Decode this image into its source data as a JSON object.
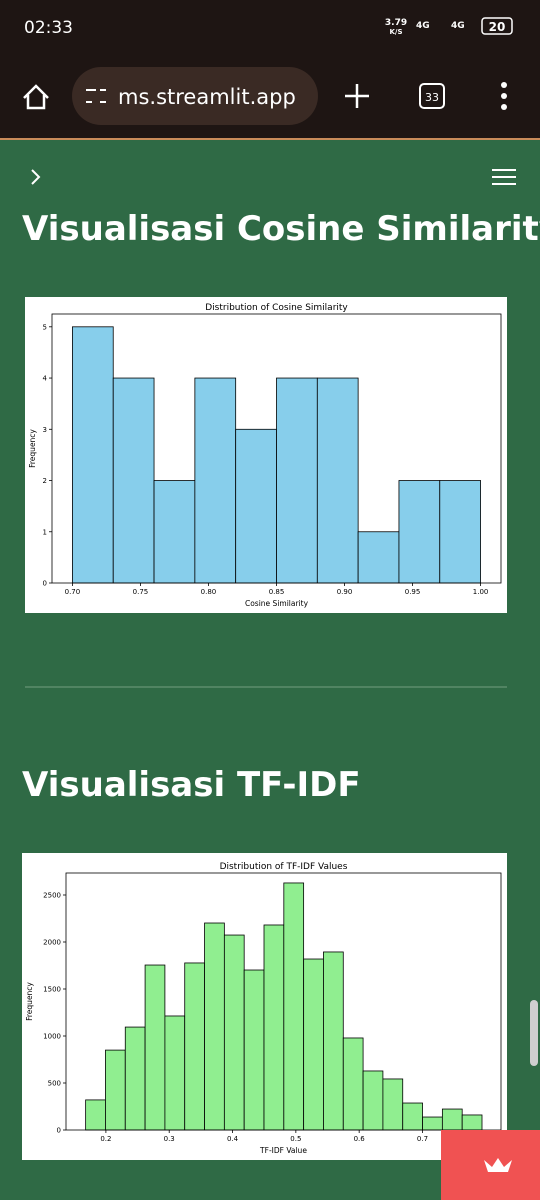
{
  "status_bar": {
    "time": "02:33",
    "speed": "3.79",
    "speed_unit": "K/S",
    "network1": "4G",
    "network2": "4G",
    "battery": "20"
  },
  "browser": {
    "url": "ms.streamlit.app",
    "tabs": "33"
  },
  "headings": [
    "Visualisasi Cosine Similarity",
    "Visualisasi TF-IDF"
  ],
  "chart_data": [
    {
      "type": "histogram",
      "title": "Distribution of Cosine Similarity",
      "x_label": "Cosine Similarity",
      "y_label": "Frequency",
      "color": "#87ceeb",
      "bins": [
        0.7,
        0.73,
        0.76,
        0.79,
        0.82,
        0.85,
        0.88,
        0.91,
        0.94,
        0.97,
        1.0
      ],
      "values": [
        5,
        4,
        2,
        4,
        3,
        4,
        4,
        1,
        2,
        2
      ],
      "xlim": [
        0.685,
        1.015
      ],
      "ylim": [
        0,
        5.25
      ],
      "xticks": [
        {
          "value": 0.7,
          "label": "0.70"
        },
        {
          "value": 0.75,
          "label": "0.75"
        },
        {
          "value": 0.8,
          "label": "0.80"
        },
        {
          "value": 0.85,
          "label": "0.85"
        },
        {
          "value": 0.9,
          "label": "0.90"
        },
        {
          "value": 0.95,
          "label": "0.95"
        },
        {
          "value": 1,
          "label": "1.00"
        }
      ],
      "yticks": [
        0,
        1,
        2,
        3,
        4,
        5
      ]
    },
    {
      "type": "histogram",
      "title": "Distribution of TF-IDF Values",
      "x_label": "TF-IDF Value",
      "y_label": "Frequency",
      "color": "#90ee90",
      "bins": [
        0.168,
        0.1993,
        0.2306,
        0.2619,
        0.2932,
        0.3245,
        0.3558,
        0.3871,
        0.4184,
        0.4497,
        0.481,
        0.5123,
        0.5436,
        0.5749,
        0.6062,
        0.6375,
        0.6688,
        0.7001,
        0.7314,
        0.7627,
        0.794
      ],
      "values": [
        320,
        850,
        1095,
        1755,
        1213,
        1777,
        2202,
        2074,
        1702,
        2181,
        2628,
        1819,
        1894,
        979,
        628,
        543,
        287,
        138,
        223,
        160
      ],
      "xlim": [
        0.137,
        0.824
      ],
      "ylim": [
        0,
        2734
      ],
      "xticks": [
        0.2,
        0.3,
        0.4,
        0.5,
        0.6,
        0.7
      ],
      "yticks": [
        0,
        500,
        1000,
        1500,
        2000,
        2500
      ]
    }
  ]
}
